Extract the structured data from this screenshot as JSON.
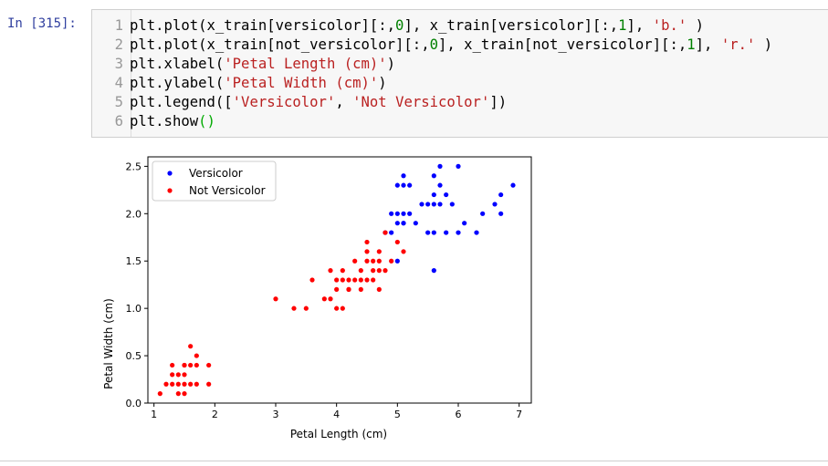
{
  "cell": {
    "prompt": "In [315]:",
    "code_lines": [
      {
        "num": "1",
        "segments": [
          {
            "t": "plt.plot(x_train[versicolor][:,",
            "c": "p"
          },
          {
            "t": "0",
            "c": "n"
          },
          {
            "t": "], x_train[versicolor][:,",
            "c": "p"
          },
          {
            "t": "1",
            "c": "n"
          },
          {
            "t": "], ",
            "c": "p"
          },
          {
            "t": "'b.'",
            "c": "s"
          },
          {
            "t": " )",
            "c": "p"
          }
        ]
      },
      {
        "num": "2",
        "segments": [
          {
            "t": "plt.plot(x_train[not_versicolor][:,",
            "c": "p"
          },
          {
            "t": "0",
            "c": "n"
          },
          {
            "t": "], x_train[not_versicolor][:,",
            "c": "p"
          },
          {
            "t": "1",
            "c": "n"
          },
          {
            "t": "], ",
            "c": "p"
          },
          {
            "t": "'r.'",
            "c": "s"
          },
          {
            "t": " )",
            "c": "p"
          }
        ]
      },
      {
        "num": "3",
        "segments": [
          {
            "t": "plt.xlabel(",
            "c": "p"
          },
          {
            "t": "'Petal Length (cm)'",
            "c": "s"
          },
          {
            "t": ")",
            "c": "p"
          }
        ]
      },
      {
        "num": "4",
        "segments": [
          {
            "t": "plt.ylabel(",
            "c": "p"
          },
          {
            "t": "'Petal Width (cm)'",
            "c": "s"
          },
          {
            "t": ")",
            "c": "p"
          }
        ]
      },
      {
        "num": "5",
        "segments": [
          {
            "t": "plt.legend([",
            "c": "p"
          },
          {
            "t": "'Versicolor'",
            "c": "s"
          },
          {
            "t": ", ",
            "c": "p"
          },
          {
            "t": "'Not Versicolor'",
            "c": "s"
          },
          {
            "t": "])",
            "c": "p"
          }
        ]
      },
      {
        "num": "6",
        "segments": [
          {
            "t": "plt.show",
            "c": "p"
          },
          {
            "t": "()",
            "c": "pm"
          }
        ]
      }
    ]
  },
  "chart_data": {
    "type": "scatter",
    "xlabel": "Petal Length (cm)",
    "ylabel": "Petal Width (cm)",
    "xlim": [
      0.9,
      7.2
    ],
    "ylim": [
      0.0,
      2.6
    ],
    "xticks": [
      1,
      2,
      3,
      4,
      5,
      6,
      7
    ],
    "yticks": [
      0.0,
      0.5,
      1.0,
      1.5,
      2.0,
      2.5
    ],
    "ytick_labels": [
      "0.0",
      "0.5",
      "1.0",
      "1.5",
      "2.0",
      "2.5"
    ],
    "grid": false,
    "legend_position": "top-left",
    "series": [
      {
        "name": "Versicolor",
        "color": "#0000ff",
        "points": [
          [
            5.1,
            2.4
          ],
          [
            5.0,
            2.3
          ],
          [
            5.1,
            2.3
          ],
          [
            5.2,
            2.3
          ],
          [
            5.7,
            2.5
          ],
          [
            6.0,
            2.5
          ],
          [
            5.6,
            2.4
          ],
          [
            5.4,
            2.1
          ],
          [
            5.5,
            2.1
          ],
          [
            5.6,
            2.1
          ],
          [
            5.7,
            2.1
          ],
          [
            5.8,
            2.2
          ],
          [
            5.6,
            2.2
          ],
          [
            6.7,
            2.2
          ],
          [
            6.9,
            2.3
          ],
          [
            5.7,
            2.3
          ],
          [
            6.6,
            2.1
          ],
          [
            6.4,
            2.0
          ],
          [
            6.7,
            2.0
          ],
          [
            4.9,
            2.0
          ],
          [
            5.0,
            2.0
          ],
          [
            5.1,
            2.0
          ],
          [
            5.2,
            2.0
          ],
          [
            5.0,
            1.9
          ],
          [
            5.1,
            1.9
          ],
          [
            5.3,
            1.9
          ],
          [
            6.1,
            1.9
          ],
          [
            4.8,
            1.8
          ],
          [
            4.9,
            1.8
          ],
          [
            5.5,
            1.8
          ],
          [
            5.6,
            1.8
          ],
          [
            5.8,
            1.8
          ],
          [
            6.0,
            1.8
          ],
          [
            6.3,
            1.8
          ],
          [
            5.0,
            1.5
          ],
          [
            5.6,
            1.4
          ],
          [
            5.1,
            1.9
          ],
          [
            5.9,
            2.1
          ]
        ]
      },
      {
        "name": "Not Versicolor",
        "color": "#ff0000",
        "points": [
          [
            1.1,
            0.1
          ],
          [
            1.4,
            0.1
          ],
          [
            1.5,
            0.1
          ],
          [
            1.3,
            0.2
          ],
          [
            1.4,
            0.2
          ],
          [
            1.5,
            0.2
          ],
          [
            1.6,
            0.2
          ],
          [
            1.2,
            0.2
          ],
          [
            1.7,
            0.2
          ],
          [
            1.9,
            0.2
          ],
          [
            1.3,
            0.3
          ],
          [
            1.4,
            0.3
          ],
          [
            1.5,
            0.3
          ],
          [
            1.3,
            0.4
          ],
          [
            1.5,
            0.4
          ],
          [
            1.6,
            0.4
          ],
          [
            1.7,
            0.4
          ],
          [
            1.9,
            0.4
          ],
          [
            1.6,
            0.6
          ],
          [
            1.7,
            0.5
          ],
          [
            1.5,
            0.4
          ],
          [
            3.0,
            1.1
          ],
          [
            3.3,
            1.0
          ],
          [
            3.5,
            1.0
          ],
          [
            3.6,
            1.3
          ],
          [
            3.8,
            1.1
          ],
          [
            3.9,
            1.1
          ],
          [
            3.9,
            1.4
          ],
          [
            4.0,
            1.0
          ],
          [
            4.1,
            1.0
          ],
          [
            4.0,
            1.2
          ],
          [
            4.0,
            1.3
          ],
          [
            4.1,
            1.3
          ],
          [
            4.2,
            1.3
          ],
          [
            4.3,
            1.3
          ],
          [
            4.4,
            1.3
          ],
          [
            4.5,
            1.3
          ],
          [
            4.2,
            1.2
          ],
          [
            4.4,
            1.2
          ],
          [
            4.6,
            1.3
          ],
          [
            4.7,
            1.2
          ],
          [
            4.1,
            1.4
          ],
          [
            4.4,
            1.4
          ],
          [
            4.6,
            1.4
          ],
          [
            4.7,
            1.4
          ],
          [
            4.8,
            1.4
          ],
          [
            4.5,
            1.5
          ],
          [
            4.6,
            1.5
          ],
          [
            4.7,
            1.5
          ],
          [
            4.9,
            1.5
          ],
          [
            4.3,
            1.5
          ],
          [
            4.7,
            1.6
          ],
          [
            4.8,
            1.8
          ],
          [
            5.0,
            1.7
          ],
          [
            5.1,
            1.6
          ],
          [
            4.5,
            1.6
          ],
          [
            4.2,
            1.2
          ],
          [
            4.5,
            1.7
          ]
        ]
      }
    ]
  }
}
